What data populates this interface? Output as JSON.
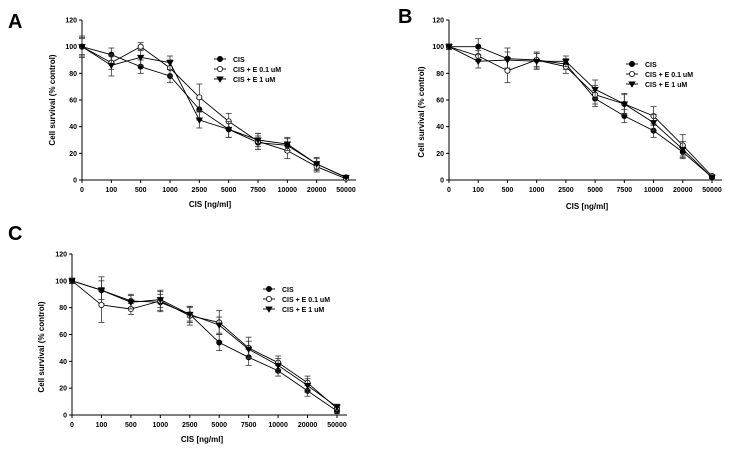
{
  "chart_data": [
    {
      "panel": "A",
      "type": "line",
      "categories": [
        "0",
        "100",
        "500",
        "1000",
        "2500",
        "5000",
        "7500",
        "10000",
        "20000",
        "50000"
      ],
      "xlabel": "CIS [ng/ml]",
      "ylabel": "Cell survival (% control)",
      "ylim": [
        0,
        120
      ],
      "yticks": [
        0,
        20,
        40,
        60,
        80,
        100,
        120
      ],
      "legend_position": "top-right",
      "series": [
        {
          "name": "CIS",
          "marker": "filled-circle",
          "values": [
            100,
            94,
            85,
            78,
            53,
            38,
            28,
            26,
            12,
            2
          ],
          "errors": [
            7,
            5,
            5,
            5,
            8,
            6,
            5,
            5,
            4,
            1
          ]
        },
        {
          "name": "CIS + E 0.1 uM",
          "marker": "open-circle",
          "values": [
            100,
            88,
            100,
            84,
            62,
            44,
            29,
            22,
            10,
            1
          ],
          "errors": [
            8,
            5,
            3,
            6,
            10,
            6,
            6,
            6,
            4,
            1
          ]
        },
        {
          "name": "CIS + E 1 uM",
          "marker": "filled-triangle",
          "values": [
            100,
            86,
            92,
            88,
            45,
            38,
            30,
            27,
            12,
            2
          ],
          "errors": [
            6,
            8,
            6,
            5,
            6,
            6,
            5,
            5,
            5,
            1
          ]
        }
      ]
    },
    {
      "panel": "B",
      "type": "line",
      "categories": [
        "0",
        "100",
        "500",
        "1000",
        "2500",
        "5000",
        "7500",
        "10000",
        "20000",
        "50000"
      ],
      "xlabel": "CIS [ng/ml]",
      "ylabel": "Cell survival (% control)",
      "ylim": [
        0,
        120
      ],
      "yticks": [
        0,
        20,
        40,
        60,
        80,
        100,
        120
      ],
      "legend_position": "top-right",
      "series": [
        {
          "name": "CIS",
          "marker": "filled-circle",
          "values": [
            100,
            100,
            91,
            90,
            87,
            61,
            48,
            37,
            21,
            2
          ],
          "errors": [
            2,
            6,
            8,
            6,
            4,
            6,
            5,
            5,
            5,
            1
          ]
        },
        {
          "name": "CIS + E 0.1 uM",
          "marker": "open-circle",
          "values": [
            100,
            93,
            82,
            90,
            85,
            64,
            57,
            48,
            26,
            3
          ],
          "errors": [
            2,
            4,
            9,
            5,
            5,
            7,
            8,
            7,
            8,
            1
          ]
        },
        {
          "name": "CIS + E 1 uM",
          "marker": "filled-triangle",
          "values": [
            100,
            89,
            90,
            89,
            89,
            68,
            57,
            43,
            23,
            2
          ],
          "errors": [
            2,
            5,
            6,
            6,
            4,
            7,
            7,
            6,
            6,
            2
          ]
        }
      ]
    },
    {
      "panel": "C",
      "type": "line",
      "categories": [
        "0",
        "100",
        "500",
        "1000",
        "2500",
        "5000",
        "7500",
        "10000",
        "20000",
        "50000"
      ],
      "xlabel": "CIS [ng/ml]",
      "ylabel": "Cell survival (% control)",
      "ylim": [
        0,
        120
      ],
      "yticks": [
        0,
        20,
        40,
        60,
        80,
        100,
        120
      ],
      "legend_position": "top-right",
      "series": [
        {
          "name": "CIS",
          "marker": "filled-circle",
          "values": [
            100,
            93,
            85,
            84,
            75,
            54,
            43,
            33,
            18,
            3
          ],
          "errors": [
            2,
            10,
            5,
            6,
            6,
            6,
            6,
            4,
            4,
            2
          ]
        },
        {
          "name": "CIS + E 0.1 uM",
          "marker": "open-circle",
          "values": [
            100,
            82,
            79,
            85,
            74,
            69,
            50,
            39,
            24,
            5
          ],
          "errors": [
            2,
            13,
            4,
            8,
            7,
            9,
            8,
            5,
            5,
            3
          ]
        },
        {
          "name": "CIS + E 1 uM",
          "marker": "filled-triangle",
          "values": [
            100,
            93,
            84,
            86,
            75,
            67,
            49,
            37,
            22,
            6
          ],
          "errors": [
            2,
            7,
            5,
            6,
            5,
            6,
            6,
            5,
            5,
            2
          ]
        }
      ]
    }
  ]
}
